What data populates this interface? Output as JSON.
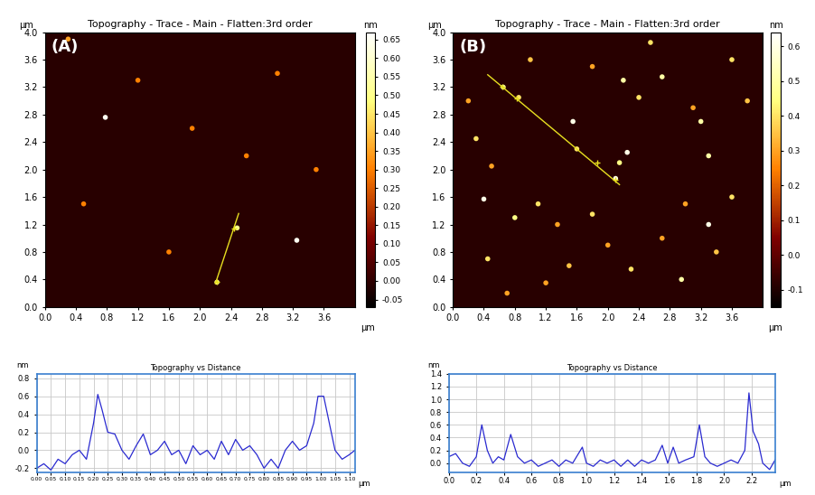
{
  "chart_data": [
    {
      "type": "scatter",
      "panel_label": "(A)",
      "title": "Topography - Trace - Main - Flatten:3rd order",
      "x_label": "µm",
      "y_label": "µm",
      "x": [
        0.78,
        3.25,
        2.22,
        2.48,
        0.3,
        1.2,
        2.6,
        3.5,
        1.6,
        0.5,
        3.0,
        1.9
      ],
      "y": [
        2.76,
        0.97,
        0.36,
        1.15,
        3.9,
        3.3,
        2.2,
        2.0,
        0.8,
        1.5,
        3.4,
        2.6
      ],
      "values": [
        0.65,
        0.65,
        0.5,
        0.5,
        0.35,
        0.3,
        0.3,
        0.3,
        0.3,
        0.3,
        0.3,
        0.3
      ],
      "xlim": [
        0,
        4
      ],
      "ylim": [
        0,
        4
      ],
      "xticks": [
        0.0,
        0.4,
        0.8,
        1.2,
        1.6,
        2.0,
        2.4,
        2.8,
        3.2,
        3.6
      ],
      "yticks": [
        0.0,
        0.4,
        0.8,
        1.2,
        1.6,
        2.0,
        2.4,
        2.8,
        3.2,
        3.6,
        4.0
      ],
      "colorbar": {
        "label": "nm",
        "lim": [
          -0.07,
          0.67
        ],
        "ticks": [
          {
            "value": -0.05,
            "label": "-0.05"
          },
          {
            "value": 0.0,
            "label": "0.00"
          },
          {
            "value": 0.05,
            "label": "0.05"
          },
          {
            "value": 0.1,
            "label": "0.10"
          },
          {
            "value": 0.15,
            "label": "0.15"
          },
          {
            "value": 0.2,
            "label": "0.20"
          },
          {
            "value": 0.25,
            "label": "0.25"
          },
          {
            "value": 0.3,
            "label": "0.30"
          },
          {
            "value": 0.35,
            "label": "0.35"
          },
          {
            "value": 0.4,
            "label": "0.40"
          },
          {
            "value": 0.45,
            "label": "0.45"
          },
          {
            "value": 0.5,
            "label": "0.50"
          },
          {
            "value": 0.55,
            "label": "0.55"
          },
          {
            "value": 0.6,
            "label": "0.60"
          },
          {
            "value": 0.65,
            "label": "0.65"
          }
        ]
      },
      "profile_line": {
        "x": [
          2.2,
          2.5
        ],
        "y": [
          0.34,
          1.36
        ],
        "markers_x": [
          2.22,
          2.44
        ],
        "markers_y": [
          0.37,
          1.14
        ]
      },
      "color": "#e8e020"
    },
    {
      "type": "scatter",
      "panel_label": "(B)",
      "title": "Topography - Trace - Main - Flatten:3rd order",
      "x_label": "µm",
      "y_label": "µm",
      "x": [
        0.65,
        0.85,
        1.55,
        1.6,
        2.15,
        2.1,
        2.2,
        2.4,
        2.55,
        2.7,
        3.2,
        3.3,
        2.25,
        0.4,
        0.3,
        0.5,
        0.8,
        1.1,
        1.35,
        1.8,
        2.3,
        2.95,
        1.2,
        0.45,
        0.7,
        3.3,
        3.6,
        3.0,
        3.8,
        3.6,
        1.0,
        1.8,
        0.2,
        3.4,
        2.7,
        1.5,
        2.0,
        3.1
      ],
      "y": [
        3.2,
        3.05,
        2.7,
        2.3,
        2.1,
        1.87,
        3.3,
        3.05,
        3.85,
        3.35,
        2.7,
        2.2,
        2.25,
        1.57,
        2.45,
        2.05,
        1.3,
        1.5,
        1.2,
        1.35,
        0.55,
        0.4,
        0.35,
        0.7,
        0.2,
        1.2,
        1.6,
        1.5,
        3.0,
        3.6,
        3.6,
        3.5,
        3.0,
        0.8,
        1.0,
        0.6,
        0.9,
        2.9
      ],
      "values": [
        0.5,
        0.4,
        0.6,
        0.4,
        0.45,
        0.6,
        0.5,
        0.4,
        0.4,
        0.5,
        0.5,
        0.5,
        0.6,
        0.6,
        0.4,
        0.3,
        0.45,
        0.4,
        0.3,
        0.4,
        0.4,
        0.5,
        0.3,
        0.4,
        0.3,
        0.6,
        0.4,
        0.3,
        0.35,
        0.4,
        0.35,
        0.3,
        0.3,
        0.35,
        0.3,
        0.35,
        0.3,
        0.3
      ],
      "xlim": [
        0,
        4
      ],
      "ylim": [
        0,
        4
      ],
      "xticks": [
        0.0,
        0.4,
        0.8,
        1.2,
        1.6,
        2.0,
        2.4,
        2.8,
        3.2,
        3.6
      ],
      "yticks": [
        0.0,
        0.4,
        0.8,
        1.2,
        1.6,
        2.0,
        2.4,
        2.8,
        3.2,
        3.6,
        4.0
      ],
      "colorbar": {
        "label": "nm",
        "lim": [
          -0.15,
          0.64
        ],
        "ticks": [
          -0.1,
          0.0,
          0.1,
          0.2,
          0.3,
          0.4,
          0.5,
          0.6
        ]
      },
      "profile_line": {
        "x": [
          0.45,
          2.15
        ],
        "y": [
          3.38,
          1.78
        ],
        "markers_x": [
          0.64,
          0.82,
          1.86,
          2.1
        ],
        "markers_y": [
          3.2,
          3.03,
          2.1,
          1.85
        ]
      },
      "color": "#e8e020"
    },
    {
      "type": "line",
      "title": "Topography vs Distance",
      "x_label": "µm",
      "y_label": "nm",
      "x": [
        0.0,
        0.025,
        0.05,
        0.075,
        0.1,
        0.125,
        0.15,
        0.175,
        0.2,
        0.215,
        0.23,
        0.25,
        0.275,
        0.3,
        0.325,
        0.35,
        0.375,
        0.4,
        0.425,
        0.45,
        0.475,
        0.5,
        0.525,
        0.55,
        0.575,
        0.6,
        0.625,
        0.65,
        0.675,
        0.7,
        0.725,
        0.75,
        0.775,
        0.8,
        0.825,
        0.85,
        0.875,
        0.9,
        0.925,
        0.95,
        0.975,
        0.99,
        1.01,
        1.03,
        1.05,
        1.075,
        1.1,
        1.12
      ],
      "values": [
        -0.2,
        -0.15,
        -0.22,
        -0.1,
        -0.15,
        -0.05,
        0.0,
        -0.1,
        0.3,
        0.62,
        0.45,
        0.2,
        0.18,
        0.0,
        -0.1,
        0.05,
        0.18,
        -0.05,
        0.0,
        0.1,
        -0.05,
        0.0,
        -0.15,
        0.05,
        -0.05,
        0.0,
        -0.1,
        0.1,
        -0.05,
        0.12,
        0.0,
        0.05,
        -0.05,
        -0.2,
        -0.1,
        -0.2,
        0.0,
        0.1,
        0.0,
        0.05,
        0.3,
        0.6,
        0.6,
        0.3,
        0.0,
        -0.1,
        -0.05,
        0.0
      ],
      "xlim": [
        0,
        1.12
      ],
      "ylim": [
        -0.25,
        0.85
      ],
      "xticks": [
        {
          "value": 0.0,
          "label": "0.00"
        },
        {
          "value": 0.05,
          "label": "0.05"
        },
        {
          "value": 0.1,
          "label": "0.10"
        },
        {
          "value": 0.15,
          "label": "0.15"
        },
        {
          "value": 0.2,
          "label": "0.20"
        },
        {
          "value": 0.25,
          "label": "0.25"
        },
        {
          "value": 0.3,
          "label": "0.30"
        },
        {
          "value": 0.35,
          "label": "0.35"
        },
        {
          "value": 0.4,
          "label": "0.40"
        },
        {
          "value": 0.45,
          "label": "0.45"
        },
        {
          "value": 0.5,
          "label": "0.50"
        },
        {
          "value": 0.55,
          "label": "0.55"
        },
        {
          "value": 0.6,
          "label": "0.60"
        },
        {
          "value": 0.65,
          "label": "0.65"
        },
        {
          "value": 0.7,
          "label": "0.70"
        },
        {
          "value": 0.75,
          "label": "0.75"
        },
        {
          "value": 0.8,
          "label": "0.80"
        },
        {
          "value": 0.85,
          "label": "0.85"
        },
        {
          "value": 0.9,
          "label": "0.90"
        },
        {
          "value": 0.95,
          "label": "0.95"
        },
        {
          "value": 1.0,
          "label": "1.00"
        },
        {
          "value": 1.05,
          "label": "1.05"
        },
        {
          "value": 1.1,
          "label": "1.10"
        }
      ],
      "yticks": [
        -0.2,
        0.0,
        0.2,
        0.4,
        0.6,
        0.8
      ],
      "grid": true,
      "color": "#2a2ad0"
    },
    {
      "type": "line",
      "title": "Topography vs Distance",
      "x_label": "µm",
      "y_label": "nm",
      "x": [
        0.0,
        0.05,
        0.1,
        0.15,
        0.2,
        0.24,
        0.28,
        0.32,
        0.36,
        0.4,
        0.45,
        0.5,
        0.55,
        0.6,
        0.65,
        0.7,
        0.75,
        0.8,
        0.85,
        0.9,
        0.97,
        1.0,
        1.05,
        1.1,
        1.15,
        1.2,
        1.25,
        1.3,
        1.35,
        1.4,
        1.45,
        1.5,
        1.55,
        1.59,
        1.63,
        1.67,
        1.72,
        1.78,
        1.82,
        1.86,
        1.9,
        1.95,
        2.0,
        2.05,
        2.1,
        2.15,
        2.18,
        2.21,
        2.25,
        2.28,
        2.33,
        2.37
      ],
      "values": [
        0.1,
        0.15,
        0.0,
        -0.05,
        0.1,
        0.6,
        0.2,
        0.0,
        0.1,
        0.05,
        0.45,
        0.1,
        0.0,
        0.05,
        -0.05,
        0.0,
        0.05,
        -0.05,
        0.05,
        0.0,
        0.25,
        0.0,
        -0.05,
        0.05,
        0.0,
        0.05,
        -0.05,
        0.05,
        -0.05,
        0.05,
        0.0,
        0.05,
        0.28,
        0.0,
        0.25,
        0.0,
        0.05,
        0.1,
        0.6,
        0.1,
        0.0,
        -0.05,
        0.0,
        0.05,
        0.0,
        0.2,
        1.1,
        0.5,
        0.3,
        0.0,
        -0.1,
        0.05
      ],
      "xlim": [
        0,
        2.37
      ],
      "ylim": [
        -0.15,
        1.4
      ],
      "xticks": [
        0.0,
        0.2,
        0.4,
        0.6,
        0.8,
        1.0,
        1.2,
        1.4,
        1.6,
        1.8,
        2.0,
        2.2
      ],
      "yticks": [
        0.0,
        0.2,
        0.4,
        0.6,
        0.8,
        1.0,
        1.2,
        1.4
      ],
      "grid": true,
      "color": "#2a2ad0"
    }
  ]
}
